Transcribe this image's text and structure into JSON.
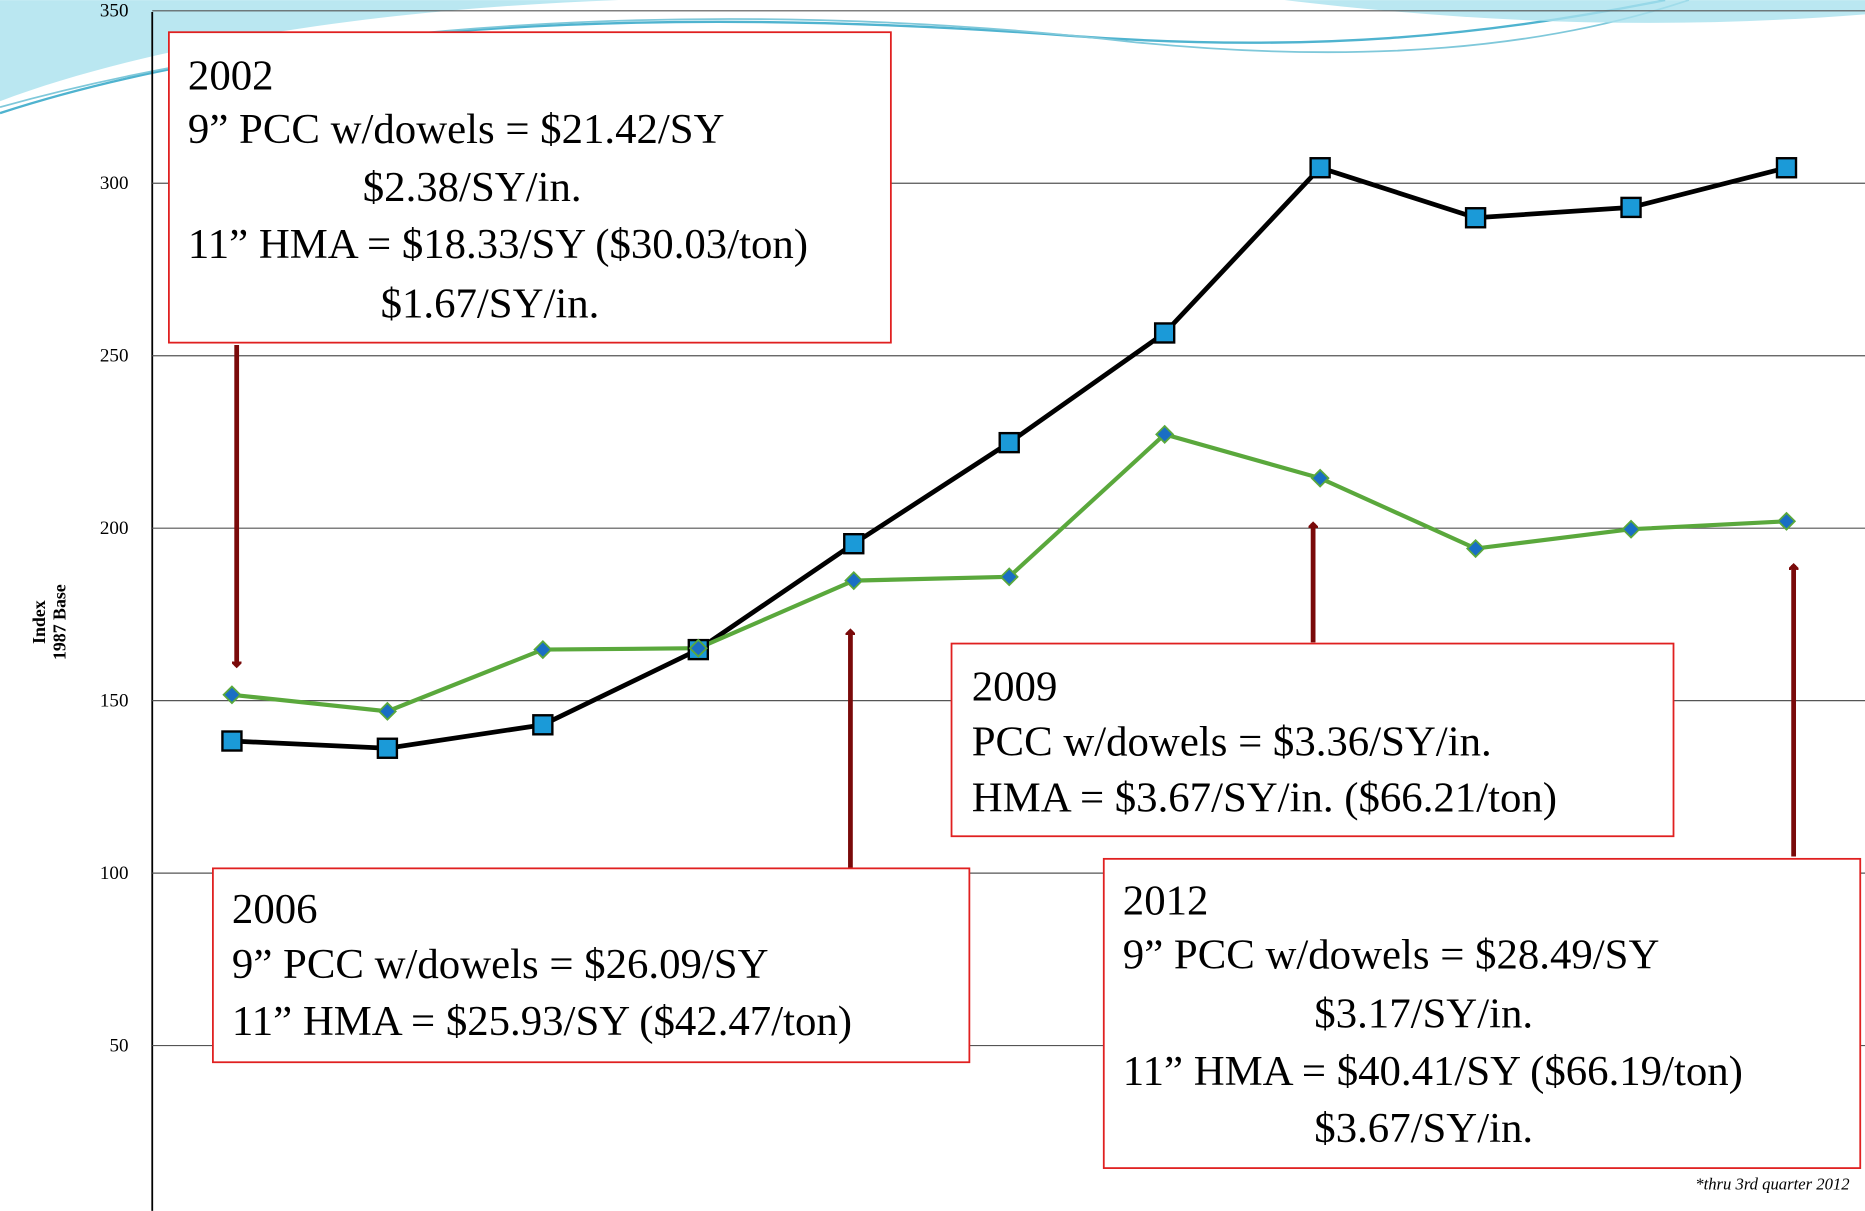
{
  "chart_data": {
    "type": "line",
    "ylabel": [
      "Index",
      "1987 Base"
    ],
    "categories": [
      null,
      null,
      null,
      null,
      null,
      null,
      null,
      null,
      null,
      null,
      null
    ],
    "series": [
      {
        "color": "#000000",
        "values": [
          138.3,
          136.2,
          143,
          164.8,
          195.5,
          224.8,
          256.6,
          304.5,
          290,
          293,
          304.5
        ]
      },
      {
        "color": "#5aa83c",
        "values": [
          151.7,
          146.9,
          164.8,
          165.2,
          184.8,
          185.9,
          227.2,
          214.5,
          194.1,
          199.7,
          202
        ]
      }
    ],
    "ylim": [
      0,
      350
    ],
    "yticks": [
      50,
      100,
      150,
      200,
      250,
      300,
      350
    ],
    "grid": true,
    "annotations": [
      {
        "lines": [
          "2002",
          "9” PCC w/dowels = $21.42/SY",
          "$2.38/SY/in.",
          "11” HMA = $18.33/SY ($30.03/ton)",
          "$1.67/SY/in."
        ]
      },
      {
        "lines": [
          "2006",
          "9” PCC w/dowels = $26.09/SY",
          "11” HMA = $25.93/SY ($42.47/ton)"
        ]
      },
      {
        "lines": [
          "2009",
          "PCC w/dowels = $3.36/SY/in.",
          "HMA = $3.67/SY/in. ($66.21/ton)"
        ]
      },
      {
        "lines": [
          "2012",
          "9” PCC w/dowels = $28.49/SY",
          "$3.17/SY/in.",
          "11” HMA = $40.41/SY ($66.19/ton)",
          "$3.67/SY/in."
        ]
      }
    ],
    "footnote": "*thru 3rd quarter 2012"
  }
}
